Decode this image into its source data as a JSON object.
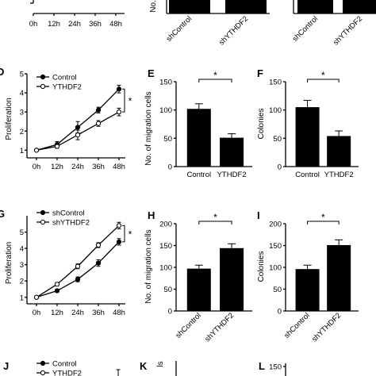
{
  "chart_data": [
    {
      "panel": "",
      "type": "line",
      "title": "",
      "ylabel": "",
      "x": [
        "0h",
        "12h",
        "24h",
        "36h",
        "48h"
      ],
      "ylim": [
        0,
        5
      ],
      "series": [],
      "significance": ""
    },
    {
      "panel": "",
      "type": "bar",
      "title": "",
      "ylabel": "No.",
      "categories": [
        "shControl",
        "shYTHDF2"
      ],
      "values": [
        null,
        null
      ],
      "errors": [
        null,
        null
      ],
      "ylim": [
        0,
        150
      ],
      "significance": ""
    },
    {
      "panel": "",
      "type": "bar",
      "title": "",
      "ylabel": "",
      "categories": [
        "shControl",
        "shYTHDF2"
      ],
      "values": [
        null,
        null
      ],
      "errors": [
        null,
        null
      ],
      "ylim": [
        0,
        150
      ],
      "significance": ""
    },
    {
      "panel": "D",
      "type": "line",
      "title": "",
      "ylabel": "Proliferation",
      "x": [
        "0h",
        "12h",
        "24h",
        "36h",
        "48h"
      ],
      "yticks": [
        "1",
        "2",
        "3",
        "4",
        "5"
      ],
      "ylim": [
        0.6,
        5.0
      ],
      "series": [
        {
          "name": "Control",
          "marker": "filled",
          "values": [
            1.0,
            1.3,
            2.2,
            3.1,
            4.2
          ],
          "errors": [
            0.05,
            0.15,
            0.3,
            0.15,
            0.2
          ]
        },
        {
          "name": "YTHDF2",
          "marker": "open",
          "values": [
            1.0,
            1.2,
            1.8,
            2.4,
            3.0
          ],
          "errors": [
            0.05,
            0.1,
            0.25,
            0.15,
            0.2
          ]
        }
      ],
      "significance": "*"
    },
    {
      "panel": "E",
      "type": "bar",
      "title": "",
      "ylabel": "No. of migration cells",
      "categories": [
        "Control",
        "YTHDF2"
      ],
      "yticks": [
        "0",
        "50",
        "100",
        "150"
      ],
      "values": [
        102,
        51
      ],
      "errors": [
        9,
        7
      ],
      "ylim": [
        0,
        150
      ],
      "significance": "*"
    },
    {
      "panel": "F",
      "type": "bar",
      "title": "",
      "ylabel": "Colonies",
      "categories": [
        "Control",
        "YTHDF2"
      ],
      "yticks": [
        "0",
        "50",
        "100",
        "150"
      ],
      "values": [
        105,
        54
      ],
      "errors": [
        12,
        9
      ],
      "ylim": [
        0,
        150
      ],
      "significance": "*"
    },
    {
      "panel": "G",
      "type": "line",
      "title": "",
      "ylabel": "Proliferation",
      "x": [
        "0h",
        "12h",
        "24h",
        "36h",
        "48h"
      ],
      "yticks": [
        "1",
        "2",
        "3",
        "4",
        "5"
      ],
      "ylim": [
        0.6,
        6.0
      ],
      "series": [
        {
          "name": "shControl",
          "marker": "filled",
          "values": [
            1.0,
            1.4,
            2.1,
            3.1,
            4.4
          ],
          "errors": [
            0.05,
            0.1,
            0.15,
            0.2,
            0.2
          ]
        },
        {
          "name": "shYTHDF2",
          "marker": "open",
          "values": [
            1.0,
            1.8,
            2.9,
            4.2,
            5.4
          ],
          "errors": [
            0.05,
            0.1,
            0.15,
            0.15,
            0.2
          ]
        }
      ],
      "significance": "*"
    },
    {
      "panel": "H",
      "type": "bar",
      "title": "",
      "ylabel": "No. of migration cells",
      "categories": [
        "shControl",
        "shYTHDF2"
      ],
      "yticks": [
        "0",
        "50",
        "100",
        "150",
        "200"
      ],
      "values": [
        97,
        144
      ],
      "errors": [
        8,
        10
      ],
      "ylim": [
        0,
        200
      ],
      "significance": "*"
    },
    {
      "panel": "I",
      "type": "bar",
      "title": "",
      "ylabel": "Colonies",
      "categories": [
        "shControl",
        "shYTHDF2"
      ],
      "yticks": [
        "0",
        "50",
        "100",
        "150",
        "200"
      ],
      "values": [
        96,
        151
      ],
      "errors": [
        9,
        12
      ],
      "ylim": [
        0,
        200
      ],
      "significance": "*"
    },
    {
      "panel": "J",
      "type": "line",
      "title": "",
      "ylabel": "",
      "series": [
        {
          "name": "Control",
          "marker": "filled",
          "values": []
        },
        {
          "name": "YTHDF2",
          "marker": "open",
          "values": []
        }
      ]
    },
    {
      "panel": "K",
      "type": "bar",
      "title": "",
      "ylabel": "ls",
      "categories": [],
      "values": []
    },
    {
      "panel": "L",
      "type": "bar",
      "title": "",
      "ylabel": "",
      "yticks": [
        "150"
      ],
      "categories": [],
      "values": []
    }
  ]
}
